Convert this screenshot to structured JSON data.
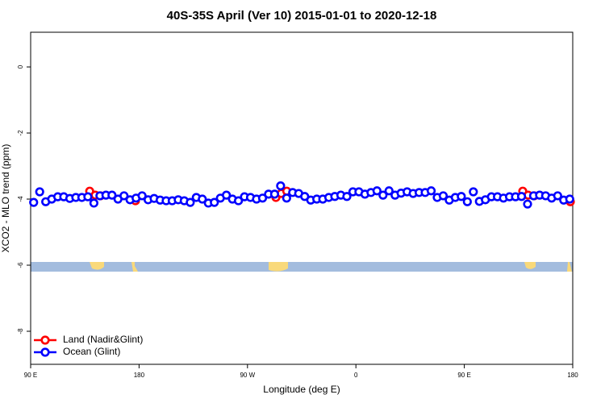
{
  "chart_data": {
    "type": "scatter",
    "title": "40S-35S April (Ver 10)   2015-01-01 to 2020-12-18",
    "x_label": "Longitude (deg E)",
    "y_label": "XCO2 - MLO trend (ppm)",
    "xlim": [
      90,
      540
    ],
    "xticks": [
      {
        "value": 90,
        "label": "90 E"
      },
      {
        "value": 180,
        "label": "180"
      },
      {
        "value": 270,
        "label": "90 W"
      },
      {
        "value": 360,
        "label": "0"
      },
      {
        "value": 450,
        "label": "90 E"
      },
      {
        "value": 540,
        "label": "180"
      }
    ],
    "ylim": [
      -9,
      1.05
    ],
    "yticks": [
      0,
      -2,
      -4,
      -6,
      -8
    ],
    "legend_position": "bottom-left",
    "series": [
      {
        "name": "Land (Nadir&Glint)",
        "color": "#ff0000",
        "x": [
          139,
          143.6,
          148,
          177,
          293.6,
          298,
          302.6,
          498.5,
          503,
          508,
          538
        ],
        "values": [
          -3.76,
          -3.88,
          -3.9,
          -4.05,
          -3.95,
          -3.83,
          -3.76,
          -3.76,
          -3.88,
          -3.9,
          -4.08
        ]
      },
      {
        "name": "Ocean (Glint)",
        "color": "#0000ff",
        "x": [
          92.5,
          97.5,
          102.5,
          107.5,
          112.5,
          117.5,
          122.5,
          127.5,
          132.5,
          137.5,
          142.5,
          147.5,
          152.5,
          157.5,
          162.5,
          167.5,
          172.5,
          177.5,
          182.5,
          187.5,
          192.5,
          197.5,
          202.5,
          207.5,
          212.5,
          217.5,
          222.5,
          227.5,
          232.5,
          237.5,
          242.5,
          247.5,
          252.5,
          257.5,
          262.5,
          267.5,
          272.5,
          277.5,
          282.5,
          287.5,
          292.5,
          297.5,
          302.5,
          307.5,
          312.5,
          317.5,
          322.5,
          327.5,
          332.5,
          337.5,
          342.5,
          347.5,
          352.5,
          357.5,
          362.5,
          367.5,
          372.5,
          377.5,
          382.5,
          387.5,
          392.5,
          397.5,
          402.5,
          407.5,
          412.5,
          417.5,
          422.5,
          427.5,
          432.5,
          437.5,
          442.5,
          447.5,
          452.5,
          457.5,
          462.5,
          467.5,
          472.5,
          477.5,
          482.5,
          487.5,
          492.5,
          497.5,
          502.5,
          507.5,
          512.5,
          517.5,
          522.5,
          527.5,
          532.5,
          537.5
        ],
        "values": [
          -4.1,
          -3.78,
          -4.08,
          -4.0,
          -3.93,
          -3.93,
          -3.98,
          -3.95,
          -3.95,
          -3.93,
          -4.12,
          -3.9,
          -3.88,
          -3.88,
          -4.0,
          -3.9,
          -4.02,
          -3.97,
          -3.9,
          -4.02,
          -3.98,
          -4.03,
          -4.05,
          -4.05,
          -4.02,
          -4.05,
          -4.1,
          -3.95,
          -4.0,
          -4.12,
          -4.1,
          -3.97,
          -3.88,
          -4.0,
          -4.05,
          -3.93,
          -3.95,
          -4.0,
          -3.97,
          -3.85,
          -3.85,
          -3.6,
          -3.97,
          -3.8,
          -3.83,
          -3.92,
          -4.03,
          -4.0,
          -4.0,
          -3.95,
          -3.92,
          -3.88,
          -3.92,
          -3.78,
          -3.78,
          -3.85,
          -3.8,
          -3.75,
          -3.88,
          -3.75,
          -3.88,
          -3.82,
          -3.78,
          -3.83,
          -3.8,
          -3.8,
          -3.75,
          -3.95,
          -3.9,
          -4.03,
          -3.95,
          -3.92,
          -4.08,
          -3.78,
          -4.07,
          -4.02,
          -3.93,
          -3.93,
          -3.97,
          -3.93,
          -3.93,
          -3.92,
          -4.15,
          -3.9,
          -3.88,
          -3.9,
          -3.97,
          -3.9,
          -4.03,
          -4.0
        ]
      }
    ]
  }
}
